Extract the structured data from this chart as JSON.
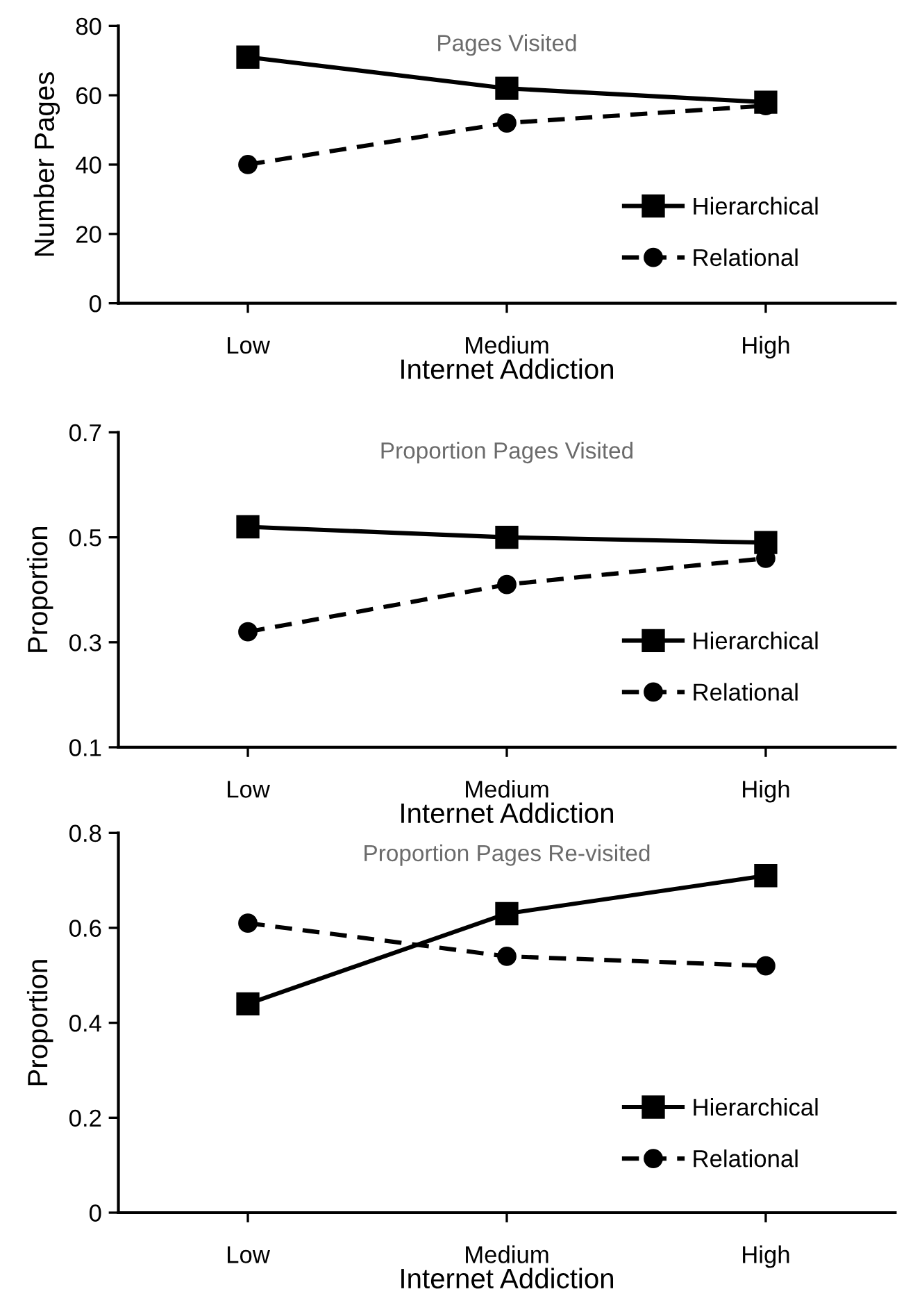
{
  "chart_data": [
    {
      "type": "line",
      "title": "Pages Visited",
      "xlabel": "Internet Addiction",
      "ylabel": "Number Pages",
      "categories": [
        "Low",
        "Medium",
        "High"
      ],
      "series": [
        {
          "name": "Hierarchical",
          "color": "#000000",
          "values": [
            71,
            62,
            58
          ],
          "marker": "square",
          "line_style": "solid"
        },
        {
          "name": "Relational",
          "color": "#000000",
          "values": [
            40,
            52,
            57
          ],
          "marker": "circle",
          "line_style": "dashed"
        }
      ],
      "ylim": [
        0,
        80
      ],
      "yticks": [
        0,
        20,
        40,
        60,
        80
      ],
      "grid": false,
      "legend": "right"
    },
    {
      "type": "line",
      "title": "Proportion Pages Visited",
      "xlabel": "Internet Addiction",
      "ylabel": "Proportion",
      "categories": [
        "Low",
        "Medium",
        "High"
      ],
      "series": [
        {
          "name": "Hierarchical",
          "color": "#000000",
          "values": [
            0.52,
            0.5,
            0.49
          ],
          "marker": "square",
          "line_style": "solid"
        },
        {
          "name": "Relational",
          "color": "#000000",
          "values": [
            0.32,
            0.41,
            0.46
          ],
          "marker": "circle",
          "line_style": "dashed"
        }
      ],
      "ylim": [
        0.1,
        0.7
      ],
      "yticks": [
        0.1,
        0.3,
        0.5,
        0.7
      ],
      "grid": false,
      "legend": "right"
    },
    {
      "type": "line",
      "title": "Proportion Pages Re-visited",
      "xlabel": "Internet Addiction",
      "ylabel": "Proportion",
      "categories": [
        "Low",
        "Medium",
        "High"
      ],
      "series": [
        {
          "name": "Hierarchical",
          "color": "#000000",
          "values": [
            0.44,
            0.63,
            0.71
          ],
          "marker": "square",
          "line_style": "solid"
        },
        {
          "name": "Relational",
          "color": "#000000",
          "values": [
            0.61,
            0.54,
            0.52
          ],
          "marker": "circle",
          "line_style": "dashed"
        }
      ],
      "ylim": [
        0,
        0.8
      ],
      "yticks": [
        0,
        0.2,
        0.4,
        0.6,
        0.8
      ],
      "grid": false,
      "legend": "lower right"
    }
  ]
}
